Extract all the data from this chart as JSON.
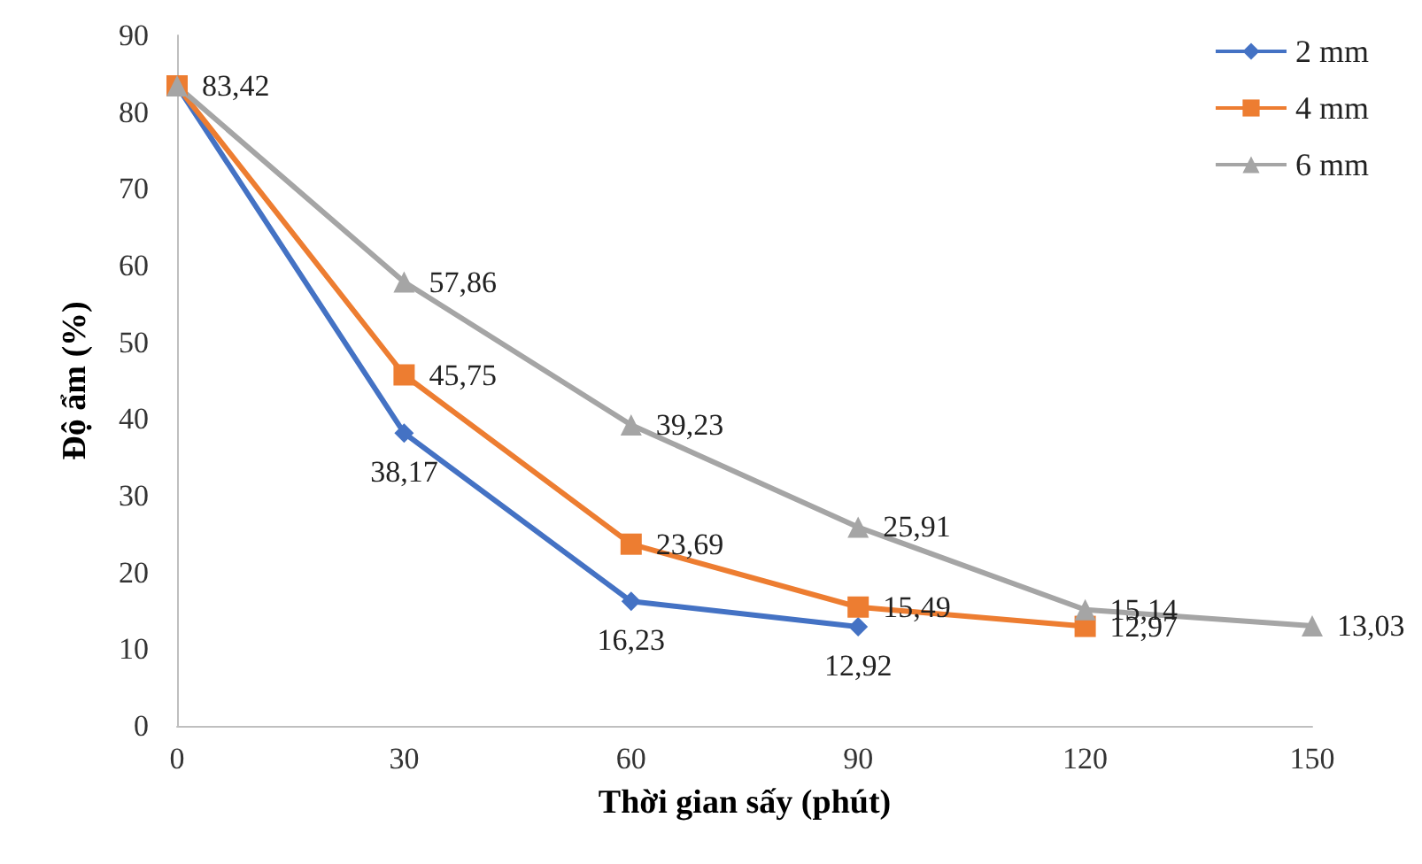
{
  "chart_data": {
    "type": "line",
    "xlabel": "Thời gian sấy (phút)",
    "ylabel": "Độ ẩm (%)",
    "xlim": [
      0,
      150
    ],
    "xticks": [
      0,
      30,
      60,
      90,
      120,
      150
    ],
    "ylim": [
      0,
      90
    ],
    "yticks": [
      0,
      10,
      20,
      30,
      40,
      50,
      60,
      70,
      80,
      90
    ],
    "grid": false,
    "legend": "top right",
    "line_style": "solid",
    "series": [
      {
        "name": "2 mm",
        "color": "#4472c4",
        "marker": "diamond",
        "x": [
          0,
          30,
          60,
          90
        ],
        "values": [
          83.42,
          38.17,
          16.23,
          12.92
        ],
        "value_labels": [
          null,
          "38,17",
          "16,23",
          "12,92"
        ]
      },
      {
        "name": "4 mm",
        "color": "#ed7d31",
        "marker": "square",
        "x": [
          0,
          30,
          60,
          90,
          120
        ],
        "values": [
          83.42,
          45.75,
          23.69,
          15.49,
          12.97
        ],
        "value_labels": [
          null,
          "45,75",
          "23,69",
          "15,49",
          "12,97"
        ]
      },
      {
        "name": "6 mm",
        "color": "#a5a5a5",
        "marker": "triangle",
        "x": [
          0,
          30,
          60,
          90,
          120,
          150
        ],
        "values": [
          83.42,
          57.86,
          39.23,
          25.91,
          15.14,
          13.03
        ],
        "value_labels": [
          "83,42",
          "57,86",
          "39,23",
          "25,91",
          "15,14",
          "13,03"
        ]
      }
    ]
  }
}
